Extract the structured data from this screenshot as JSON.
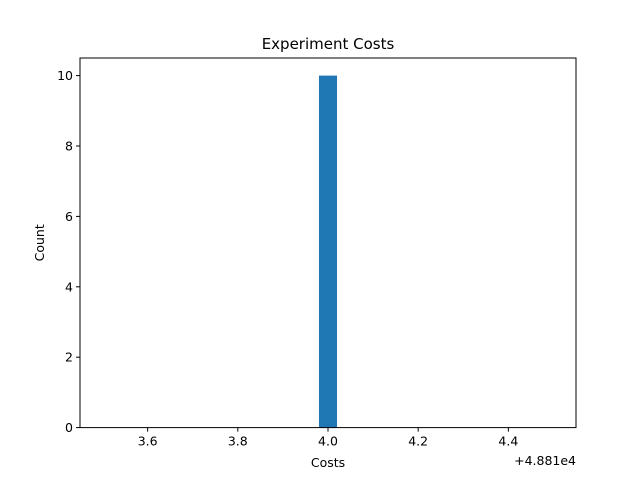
{
  "chart_data": {
    "type": "bar",
    "title": "Experiment Costs",
    "xlabel": "Costs",
    "ylabel": "Count",
    "x_offset_label": "+4.881e4",
    "xlim": [
      3.45,
      4.55
    ],
    "ylim": [
      0,
      10.5
    ],
    "x_ticks": [
      3.6,
      3.8,
      4.0,
      4.2,
      4.4
    ],
    "x_tick_labels": [
      "3.6",
      "3.8",
      "4.0",
      "4.2",
      "4.4"
    ],
    "y_ticks": [
      0,
      2,
      4,
      6,
      8,
      10
    ],
    "y_tick_labels": [
      "0",
      "2",
      "4",
      "6",
      "8",
      "10"
    ],
    "bins": [
      {
        "x0": 3.98,
        "x1": 4.02,
        "count": 10
      }
    ],
    "grid": false,
    "bar_color": "#1f77b4"
  }
}
